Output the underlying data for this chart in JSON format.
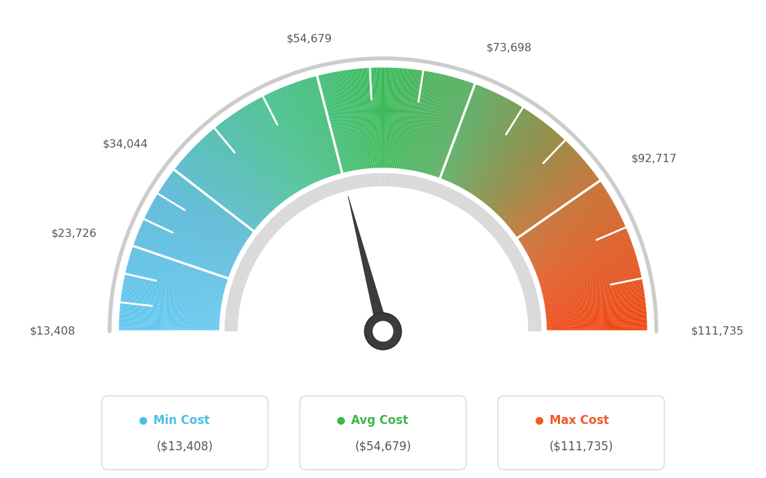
{
  "min_val": 13408,
  "max_val": 111735,
  "avg_val": 54679,
  "tick_values": [
    13408,
    23726,
    34044,
    54679,
    73698,
    92717,
    111735
  ],
  "tick_labels": {
    "13408": "$13,408",
    "23726": "$23,726",
    "34044": "$34,044",
    "54679": "$54,679",
    "73698": "$73,698",
    "92717": "$92,717",
    "111735": "$111,735"
  },
  "color_stops": [
    [
      0.0,
      "#62c8f0"
    ],
    [
      0.18,
      "#5ab8d8"
    ],
    [
      0.35,
      "#48c090"
    ],
    [
      0.5,
      "#3aba58"
    ],
    [
      0.62,
      "#5aaa60"
    ],
    [
      0.72,
      "#8a8840"
    ],
    [
      0.8,
      "#c07030"
    ],
    [
      0.9,
      "#e05820"
    ],
    [
      1.0,
      "#f04410"
    ]
  ],
  "legend_items": [
    {
      "label": "Min Cost",
      "value": "($13,408)",
      "color": "#4bbfe8"
    },
    {
      "label": "Avg Cost",
      "value": "($54,679)",
      "color": "#3cb84a"
    },
    {
      "label": "Max Cost",
      "value": "($111,735)",
      "color": "#f05a28"
    }
  ],
  "background_color": "#ffffff",
  "label_color": "#555555",
  "outer_arc_color": "#cccccc",
  "inner_arc_color": "#d8d8d8",
  "needle_color": "#404040",
  "hub_outer_color": "#404040",
  "hub_inner_color": "#ffffff"
}
